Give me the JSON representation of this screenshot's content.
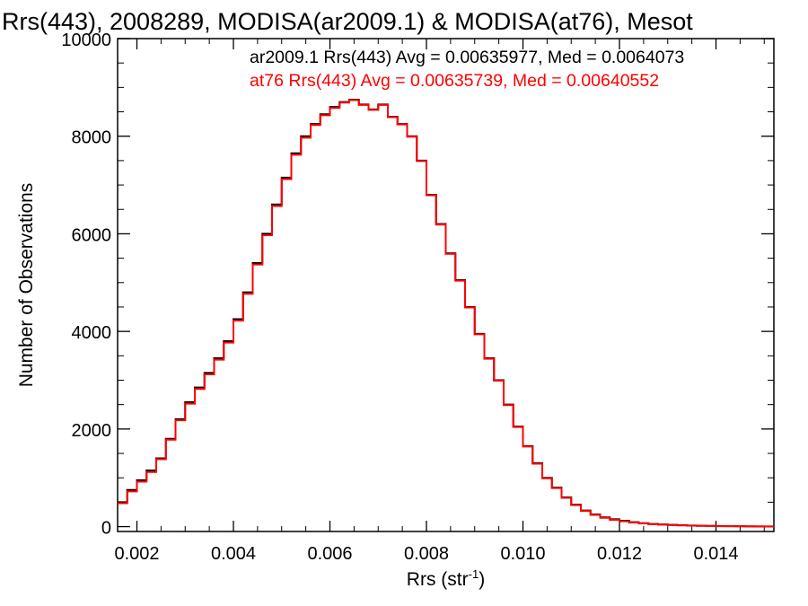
{
  "chart_data": {
    "type": "line",
    "title": "Rrs(443), 2008289, MODISA(ar2009.1) & MODISA(at76), Mesot",
    "xlabel": "Rrs (str",
    "xlabel_sup": "-1",
    "xlabel_close": ")",
    "ylabel": "Number of Observations",
    "xlim": [
      0.0016,
      0.0152
    ],
    "ylim": [
      -100,
      10000
    ],
    "x_ticks": [
      0.002,
      0.004,
      0.006,
      0.008,
      0.01,
      0.012,
      0.014
    ],
    "x_tick_labels": [
      "0.002",
      "0.004",
      "0.006",
      "0.008",
      "0.010",
      "0.012",
      "0.014"
    ],
    "y_ticks": [
      0,
      2000,
      4000,
      6000,
      8000,
      10000
    ],
    "y_tick_labels": [
      "0",
      "2000",
      "4000",
      "6000",
      "8000",
      "10000"
    ],
    "grid": false,
    "annotations": [
      {
        "text": "ar2009.1 Rrs(443) Avg = 0.00635977, Med = 0.0064073",
        "color": "#000000"
      },
      {
        "text": "at76 Rrs(443) Avg = 0.00635739, Med = 0.00640552",
        "color": "#ff0000"
      }
    ],
    "series": [
      {
        "color": "#000000",
        "x": [
          0.0016,
          0.0018,
          0.002,
          0.0022,
          0.0024,
          0.0026,
          0.0028,
          0.003,
          0.0032,
          0.0034,
          0.0036,
          0.0038,
          0.004,
          0.0042,
          0.0044,
          0.0046,
          0.0048,
          0.005,
          0.0052,
          0.0054,
          0.0056,
          0.0058,
          0.006,
          0.0062,
          0.0064,
          0.0066,
          0.0068,
          0.007,
          0.0072,
          0.0074,
          0.0076,
          0.0078,
          0.008,
          0.0082,
          0.0084,
          0.0086,
          0.0088,
          0.009,
          0.0092,
          0.0094,
          0.0096,
          0.0098,
          0.01,
          0.0102,
          0.0104,
          0.0106,
          0.0108,
          0.011,
          0.0112,
          0.0114,
          0.0116,
          0.0118,
          0.012,
          0.0122,
          0.0124,
          0.0126,
          0.0128,
          0.013,
          0.0132,
          0.0134,
          0.0136,
          0.0138,
          0.014,
          0.0142,
          0.0144,
          0.0146,
          0.0148,
          0.015,
          0.0152
        ],
        "y": [
          500,
          750,
          950,
          1150,
          1400,
          1800,
          2200,
          2550,
          2850,
          3150,
          3450,
          3800,
          4250,
          4800,
          5400,
          6000,
          6600,
          7150,
          7650,
          8000,
          8250,
          8450,
          8600,
          8700,
          8750,
          8650,
          8550,
          8650,
          8400,
          8250,
          8000,
          7500,
          6800,
          6200,
          5600,
          5050,
          4500,
          3950,
          3450,
          3000,
          2500,
          2050,
          1650,
          1300,
          1000,
          800,
          600,
          450,
          330,
          250,
          190,
          150,
          120,
          90,
          70,
          55,
          45,
          35,
          28,
          22,
          18,
          14,
          11,
          9,
          7,
          5,
          4,
          3,
          3
        ]
      },
      {
        "color": "#ff0000",
        "x": [
          0.0016,
          0.0018,
          0.002,
          0.0022,
          0.0024,
          0.0026,
          0.0028,
          0.003,
          0.0032,
          0.0034,
          0.0036,
          0.0038,
          0.004,
          0.0042,
          0.0044,
          0.0046,
          0.0048,
          0.005,
          0.0052,
          0.0054,
          0.0056,
          0.0058,
          0.006,
          0.0062,
          0.0064,
          0.0066,
          0.0068,
          0.007,
          0.0072,
          0.0074,
          0.0076,
          0.0078,
          0.008,
          0.0082,
          0.0084,
          0.0086,
          0.0088,
          0.009,
          0.0092,
          0.0094,
          0.0096,
          0.0098,
          0.01,
          0.0102,
          0.0104,
          0.0106,
          0.0108,
          0.011,
          0.0112,
          0.0114,
          0.0116,
          0.0118,
          0.012,
          0.0122,
          0.0124,
          0.0126,
          0.0128,
          0.013,
          0.0132,
          0.0134,
          0.0136,
          0.0138,
          0.014,
          0.0142,
          0.0144,
          0.0146,
          0.0148,
          0.015,
          0.0152
        ],
        "y": [
          480,
          720,
          920,
          1120,
          1380,
          1780,
          2180,
          2520,
          2820,
          3120,
          3420,
          3770,
          4220,
          4770,
          5370,
          5970,
          6570,
          7120,
          7620,
          7970,
          8230,
          8430,
          8580,
          8690,
          8740,
          8640,
          8540,
          8640,
          8390,
          8240,
          7990,
          7490,
          6790,
          6190,
          5590,
          5040,
          4490,
          3940,
          3440,
          2990,
          2490,
          2040,
          1640,
          1290,
          990,
          790,
          590,
          440,
          320,
          240,
          180,
          140,
          110,
          85,
          65,
          50,
          40,
          30,
          24,
          19,
          15,
          12,
          9,
          7,
          5,
          4,
          3,
          2,
          2
        ]
      }
    ]
  }
}
